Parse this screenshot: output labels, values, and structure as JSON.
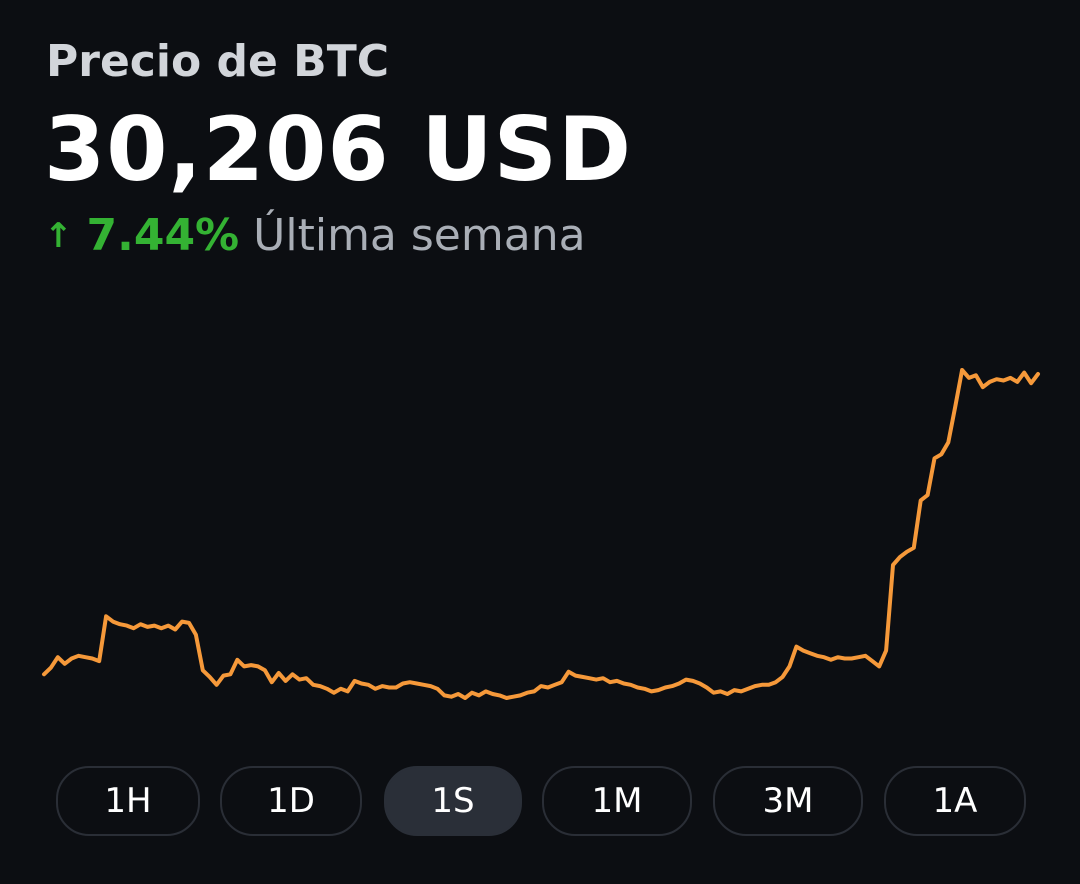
{
  "header": {
    "title": "Precio de BTC",
    "price": "30,206 USD",
    "change_arrow": "↑",
    "change_percent": "7.44%",
    "change_period": "Última semana"
  },
  "colors": {
    "background": "#0c0e12",
    "line": "#f6993a",
    "positive": "#34b233",
    "muted": "#a9aeb6"
  },
  "chart_data": {
    "type": "line",
    "series": [
      {
        "values": [
          27960,
          28010,
          28090,
          28040,
          28080,
          28100,
          28090,
          28080,
          28060,
          28400,
          28360,
          28340,
          28330,
          28310,
          28340,
          28320,
          28330,
          28310,
          28330,
          28300,
          28360,
          28350,
          28260,
          27990,
          27940,
          27880,
          27950,
          27960,
          28070,
          28020,
          28030,
          28020,
          27990,
          27900,
          27970,
          27910,
          27960,
          27920,
          27930,
          27880,
          27870,
          27850,
          27820,
          27850,
          27830,
          27910,
          27890,
          27880,
          27850,
          27870,
          27860,
          27860,
          27890,
          27900,
          27890,
          27880,
          27870,
          27850,
          27800,
          27790,
          27810,
          27780,
          27820,
          27800,
          27830,
          27810,
          27800,
          27780,
          27790,
          27800,
          27820,
          27830,
          27870,
          27860,
          27880,
          27900,
          27980,
          27950,
          27940,
          27930,
          27920,
          27930,
          27900,
          27910,
          27890,
          27880,
          27860,
          27850,
          27830,
          27840,
          27860,
          27870,
          27890,
          27920,
          27910,
          27890,
          27860,
          27820,
          27830,
          27810,
          27840,
          27830,
          27850,
          27870,
          27880,
          27880,
          27900,
          27940,
          28020,
          28170,
          28140,
          28120,
          28100,
          28090,
          28070,
          28090,
          28080,
          28080,
          28090,
          28100,
          28060,
          28020,
          28140,
          28790,
          28850,
          28890,
          28920,
          29280,
          29320,
          29600,
          29630,
          29720,
          29990,
          30270,
          30210,
          30230,
          30140,
          30180,
          30200,
          30190,
          30210,
          30180,
          30250,
          30170,
          30240
        ]
      }
    ]
  },
  "range_buttons": {
    "selected": "1S",
    "b1": "1H",
    "b2": "1D",
    "b3": "1S",
    "b4": "1M",
    "b5": "3M",
    "b6": "1A"
  }
}
